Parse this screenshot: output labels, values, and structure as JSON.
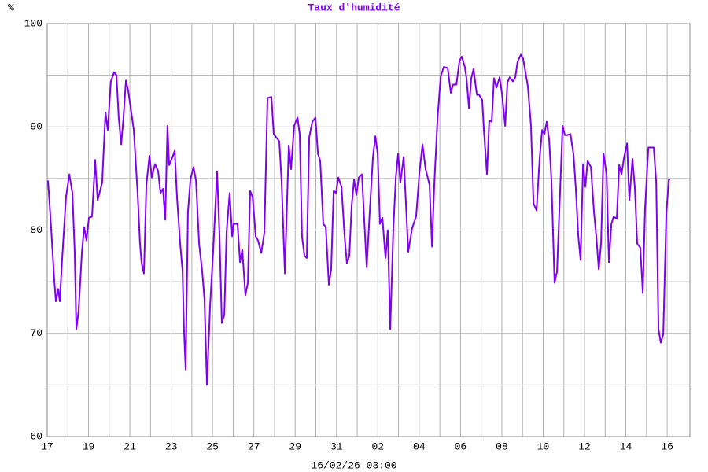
{
  "chart_data": {
    "type": "line",
    "title": "Taux d'humidité",
    "ylabel": "%",
    "xlabel": "16/02/26 03:00",
    "color": "#7f00ee",
    "grid": true,
    "xlim": [
      0,
      31.1
    ],
    "xticks": [
      {
        "value": 0,
        "label": "17"
      },
      {
        "value": 2,
        "label": "19"
      },
      {
        "value": 4,
        "label": "21"
      },
      {
        "value": 6,
        "label": "23"
      },
      {
        "value": 8,
        "label": "25"
      },
      {
        "value": 10,
        "label": "27"
      },
      {
        "value": 12,
        "label": "29"
      },
      {
        "value": 14,
        "label": "31"
      },
      {
        "value": 16,
        "label": "02"
      },
      {
        "value": 18,
        "label": "04"
      },
      {
        "value": 20,
        "label": "06"
      },
      {
        "value": 22,
        "label": "08"
      },
      {
        "value": 24,
        "label": "10"
      },
      {
        "value": 26,
        "label": "12"
      },
      {
        "value": 28,
        "label": "14"
      },
      {
        "value": 30,
        "label": "16"
      }
    ],
    "x_minor_ticks": [
      1,
      3,
      5,
      7,
      9,
      11,
      13,
      15,
      17,
      19,
      21,
      23,
      25,
      27,
      29,
      31
    ],
    "ylim": [
      60,
      100
    ],
    "yticks": [
      60,
      70,
      80,
      90,
      100
    ],
    "y_minor_ticks": [
      65,
      75,
      85,
      95
    ],
    "x": [
      0.04,
      0.19,
      0.34,
      0.42,
      0.53,
      0.61,
      0.72,
      0.91,
      1.07,
      1.22,
      1.33,
      1.41,
      1.52,
      1.68,
      1.79,
      1.9,
      2.02,
      2.17,
      2.32,
      2.44,
      2.66,
      2.82,
      2.93,
      3.08,
      3.24,
      3.35,
      3.46,
      3.58,
      3.69,
      3.81,
      3.92,
      4.19,
      4.38,
      4.49,
      4.57,
      4.68,
      4.8,
      4.95,
      5.06,
      5.22,
      5.37,
      5.48,
      5.6,
      5.71,
      5.82,
      5.9,
      6.05,
      6.17,
      6.28,
      6.43,
      6.55,
      6.62,
      6.7,
      6.81,
      6.93,
      7.08,
      7.2,
      7.35,
      7.5,
      7.61,
      7.73,
      7.88,
      8.03,
      8.22,
      8.34,
      8.45,
      8.57,
      8.68,
      8.83,
      8.95,
      9.02,
      9.21,
      9.33,
      9.44,
      9.59,
      9.71,
      9.82,
      9.94,
      10.09,
      10.2,
      10.36,
      10.51,
      10.66,
      10.85,
      10.96,
      11.12,
      11.23,
      11.34,
      11.5,
      11.69,
      11.8,
      11.95,
      12.11,
      12.22,
      12.33,
      12.45,
      12.56,
      12.68,
      12.83,
      12.98,
      13.1,
      13.21,
      13.36,
      13.48,
      13.63,
      13.74,
      13.86,
      13.97,
      14.09,
      14.24,
      14.39,
      14.5,
      14.62,
      14.73,
      14.85,
      14.96,
      15.08,
      15.23,
      15.34,
      15.46,
      15.61,
      15.76,
      15.88,
      15.99,
      16.1,
      16.22,
      16.37,
      16.48,
      16.6,
      16.75,
      16.87,
      16.98,
      17.09,
      17.25,
      17.36,
      17.47,
      17.66,
      17.85,
      18.01,
      18.16,
      18.31,
      18.5,
      18.62,
      18.73,
      18.89,
      19.04,
      19.19,
      19.38,
      19.53,
      19.64,
      19.8,
      19.95,
      20.06,
      20.21,
      20.29,
      20.41,
      20.52,
      20.63,
      20.79,
      20.9,
      21.05,
      21.13,
      21.28,
      21.39,
      21.51,
      21.62,
      21.74,
      21.89,
      22.0,
      22.16,
      22.27,
      22.38,
      22.54,
      22.65,
      22.76,
      22.92,
      23.03,
      23.15,
      23.26,
      23.41,
      23.53,
      23.68,
      23.83,
      23.95,
      24.06,
      24.17,
      24.29,
      24.4,
      24.55,
      24.67,
      24.78,
      24.94,
      25.05,
      25.16,
      25.32,
      25.47,
      25.58,
      25.7,
      25.81,
      25.93,
      26.04,
      26.15,
      26.31,
      26.46,
      26.57,
      26.69,
      26.8,
      26.92,
      27.07,
      27.18,
      27.3,
      27.41,
      27.56,
      27.68,
      27.79,
      27.91,
      28.06,
      28.17,
      28.32,
      28.44,
      28.55,
      28.7,
      28.82,
      28.93,
      29.09,
      29.24,
      29.35,
      29.47,
      29.58,
      29.69,
      29.81,
      29.96,
      30.08,
      30.15
    ],
    "values": [
      84.8,
      80.2,
      75.2,
      73.1,
      74.3,
      73.1,
      77.1,
      83.2,
      85.4,
      83.6,
      77.9,
      70.4,
      72.2,
      77.9,
      80.3,
      79.0,
      81.2,
      81.3,
      86.8,
      82.9,
      84.6,
      91.4,
      89.7,
      94.4,
      95.3,
      95.0,
      90.9,
      88.3,
      90.9,
      94.5,
      93.5,
      89.7,
      83.4,
      78.7,
      76.8,
      75.8,
      84.4,
      87.2,
      85.1,
      86.4,
      85.7,
      83.6,
      84.0,
      81.0,
      90.1,
      86.3,
      87.0,
      87.7,
      83.2,
      78.8,
      76.0,
      70.3,
      66.5,
      81.7,
      84.9,
      86.1,
      84.8,
      78.7,
      76.0,
      73.3,
      65.0,
      72.6,
      77.9,
      85.7,
      79.4,
      71.0,
      71.8,
      79.8,
      83.6,
      79.4,
      80.6,
      80.6,
      76.9,
      78.1,
      73.7,
      74.9,
      83.8,
      83.2,
      79.4,
      79.0,
      77.8,
      79.8,
      92.8,
      92.9,
      89.3,
      88.9,
      88.6,
      84.8,
      75.8,
      88.2,
      85.9,
      90.1,
      90.9,
      89.3,
      79.4,
      77.5,
      77.3,
      89.0,
      90.5,
      90.9,
      87.4,
      86.7,
      80.6,
      80.3,
      74.7,
      76.2,
      83.8,
      83.6,
      85.1,
      84.2,
      79.4,
      76.8,
      77.5,
      82.3,
      84.9,
      83.4,
      85.1,
      85.4,
      81.0,
      76.4,
      81.9,
      87.0,
      89.1,
      87.4,
      80.6,
      81.2,
      77.3,
      80.0,
      70.4,
      80.2,
      85.1,
      87.4,
      84.6,
      87.1,
      82.5,
      77.9,
      80.2,
      81.3,
      85.5,
      88.3,
      85.9,
      84.4,
      78.4,
      84.4,
      90.9,
      94.9,
      95.8,
      95.7,
      93.3,
      94.1,
      94.1,
      96.4,
      96.8,
      95.8,
      94.7,
      91.8,
      94.7,
      95.6,
      93.1,
      93.1,
      92.6,
      89.7,
      85.4,
      90.6,
      90.5,
      94.7,
      93.8,
      94.8,
      93.3,
      90.1,
      94.3,
      94.8,
      94.4,
      94.8,
      96.3,
      97.0,
      96.6,
      95.2,
      93.9,
      90.1,
      82.6,
      81.9,
      87.0,
      89.7,
      89.3,
      90.5,
      88.7,
      84.8,
      74.9,
      76.0,
      81.7,
      90.1,
      89.2,
      89.2,
      89.3,
      87.3,
      84.0,
      79.4,
      77.1,
      86.4,
      84.2,
      86.7,
      86.1,
      81.7,
      79.4,
      76.2,
      78.7,
      87.4,
      85.4,
      76.9,
      80.6,
      81.3,
      81.1,
      86.3,
      85.4,
      87.0,
      88.4,
      82.9,
      86.9,
      84.0,
      78.7,
      78.3,
      73.9,
      82.1,
      88.0,
      88.0,
      88.0,
      84.6,
      70.4,
      69.1,
      69.9,
      81.6,
      84.9,
      84.9
    ]
  }
}
